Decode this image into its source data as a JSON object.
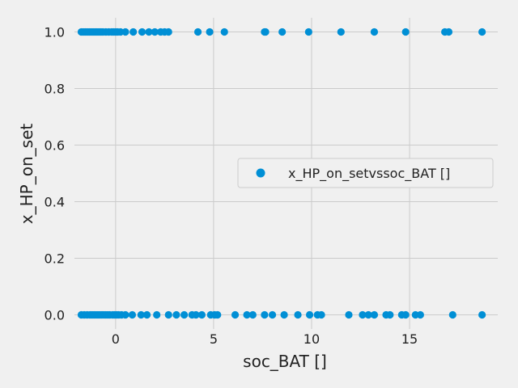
{
  "chart_data": {
    "type": "scatter",
    "xlabel": "soc_BAT []",
    "ylabel": "x_HP_on_set",
    "xlim": [
      -2.1,
      19.5
    ],
    "ylim": [
      -0.05,
      1.05
    ],
    "xticks": [
      0,
      5,
      10,
      15
    ],
    "yticks": [
      0.0,
      0.2,
      0.4,
      0.6,
      0.8,
      1.0
    ],
    "xtick_labels": [
      "0",
      "5",
      "10",
      "15"
    ],
    "ytick_labels": [
      "0.0",
      "0.2",
      "0.4",
      "0.6",
      "0.8",
      "1.0"
    ],
    "grid": true,
    "legend": {
      "placement": "center-right"
    },
    "series": [
      {
        "name": "x_HP_on_setvssoc_BAT []",
        "color": "#008fd5",
        "points": [
          {
            "x": -1.75,
            "y": 1
          },
          {
            "x": -1.65,
            "y": 1
          },
          {
            "x": -1.55,
            "y": 1
          },
          {
            "x": -1.45,
            "y": 1
          },
          {
            "x": -1.35,
            "y": 1
          },
          {
            "x": -1.25,
            "y": 1
          },
          {
            "x": -1.15,
            "y": 1
          },
          {
            "x": -1.05,
            "y": 1
          },
          {
            "x": -0.95,
            "y": 1
          },
          {
            "x": -0.85,
            "y": 1
          },
          {
            "x": -0.75,
            "y": 1
          },
          {
            "x": -0.65,
            "y": 1
          },
          {
            "x": -0.5,
            "y": 1
          },
          {
            "x": -0.35,
            "y": 1
          },
          {
            "x": -0.2,
            "y": 1
          },
          {
            "x": -0.1,
            "y": 1
          },
          {
            "x": 0.0,
            "y": 1
          },
          {
            "x": 0.1,
            "y": 1
          },
          {
            "x": 0.25,
            "y": 1
          },
          {
            "x": 0.5,
            "y": 1
          },
          {
            "x": 0.9,
            "y": 1
          },
          {
            "x": 1.35,
            "y": 1
          },
          {
            "x": 1.7,
            "y": 1
          },
          {
            "x": 2.0,
            "y": 1
          },
          {
            "x": 2.3,
            "y": 1
          },
          {
            "x": 2.5,
            "y": 1
          },
          {
            "x": 2.7,
            "y": 1
          },
          {
            "x": 4.2,
            "y": 1
          },
          {
            "x": 4.8,
            "y": 1
          },
          {
            "x": 5.55,
            "y": 1
          },
          {
            "x": 7.6,
            "y": 1
          },
          {
            "x": 7.65,
            "y": 1
          },
          {
            "x": 8.5,
            "y": 1
          },
          {
            "x": 9.85,
            "y": 1
          },
          {
            "x": 11.5,
            "y": 1
          },
          {
            "x": 13.2,
            "y": 1
          },
          {
            "x": 14.8,
            "y": 1
          },
          {
            "x": 16.8,
            "y": 1
          },
          {
            "x": 17.0,
            "y": 1
          },
          {
            "x": 18.7,
            "y": 1
          },
          {
            "x": -1.75,
            "y": 0
          },
          {
            "x": -1.6,
            "y": 0
          },
          {
            "x": -1.45,
            "y": 0
          },
          {
            "x": -1.3,
            "y": 0
          },
          {
            "x": -1.2,
            "y": 0
          },
          {
            "x": -1.1,
            "y": 0
          },
          {
            "x": -1.0,
            "y": 0
          },
          {
            "x": -0.9,
            "y": 0
          },
          {
            "x": -0.8,
            "y": 0
          },
          {
            "x": -0.7,
            "y": 0
          },
          {
            "x": -0.6,
            "y": 0
          },
          {
            "x": -0.5,
            "y": 0
          },
          {
            "x": -0.4,
            "y": 0
          },
          {
            "x": -0.3,
            "y": 0
          },
          {
            "x": -0.15,
            "y": 0
          },
          {
            "x": -0.05,
            "y": 0
          },
          {
            "x": 0.05,
            "y": 0
          },
          {
            "x": 0.15,
            "y": 0
          },
          {
            "x": 0.3,
            "y": 0
          },
          {
            "x": 0.5,
            "y": 0
          },
          {
            "x": 0.85,
            "y": 0
          },
          {
            "x": 1.3,
            "y": 0
          },
          {
            "x": 1.6,
            "y": 0
          },
          {
            "x": 2.1,
            "y": 0
          },
          {
            "x": 2.7,
            "y": 0
          },
          {
            "x": 3.1,
            "y": 0
          },
          {
            "x": 3.5,
            "y": 0
          },
          {
            "x": 3.9,
            "y": 0
          },
          {
            "x": 4.1,
            "y": 0
          },
          {
            "x": 4.4,
            "y": 0
          },
          {
            "x": 4.85,
            "y": 0
          },
          {
            "x": 5.05,
            "y": 0
          },
          {
            "x": 5.2,
            "y": 0
          },
          {
            "x": 6.1,
            "y": 0
          },
          {
            "x": 6.7,
            "y": 0
          },
          {
            "x": 7.0,
            "y": 0
          },
          {
            "x": 7.6,
            "y": 0
          },
          {
            "x": 8.0,
            "y": 0
          },
          {
            "x": 8.6,
            "y": 0
          },
          {
            "x": 9.3,
            "y": 0
          },
          {
            "x": 9.9,
            "y": 0
          },
          {
            "x": 10.3,
            "y": 0
          },
          {
            "x": 10.5,
            "y": 0
          },
          {
            "x": 11.9,
            "y": 0
          },
          {
            "x": 12.6,
            "y": 0
          },
          {
            "x": 12.9,
            "y": 0
          },
          {
            "x": 13.2,
            "y": 0
          },
          {
            "x": 13.8,
            "y": 0
          },
          {
            "x": 14.0,
            "y": 0
          },
          {
            "x": 14.6,
            "y": 0
          },
          {
            "x": 14.8,
            "y": 0
          },
          {
            "x": 15.3,
            "y": 0
          },
          {
            "x": 15.55,
            "y": 0
          },
          {
            "x": 17.2,
            "y": 0
          },
          {
            "x": 18.7,
            "y": 0
          }
        ]
      }
    ]
  }
}
